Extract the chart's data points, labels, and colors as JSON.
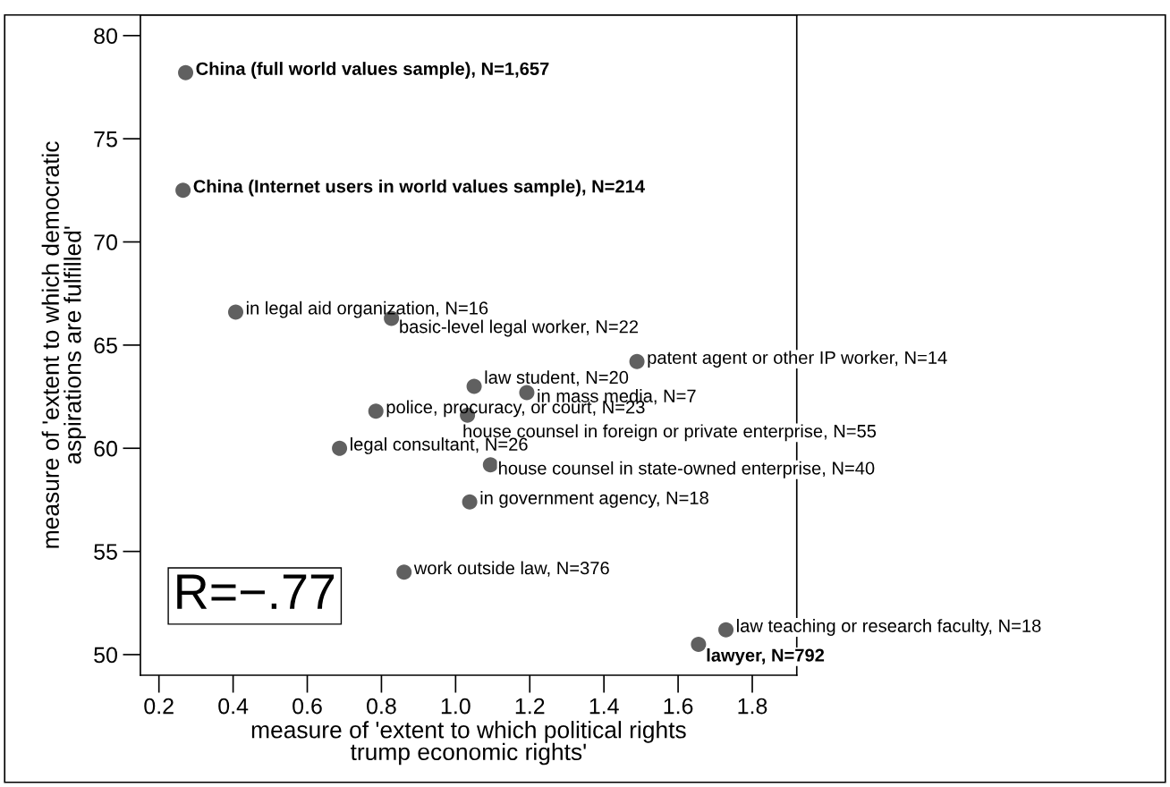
{
  "chart_data": {
    "type": "scatter",
    "xlabel": "measure of 'extent to which political rights\ntrump economic rights'",
    "ylabel": "measure of 'extent to which democratic\naspirations are fulfilled'",
    "x": [
      0.272,
      0.265,
      0.407,
      0.827,
      1.489,
      1.05,
      1.192,
      0.785,
      1.032,
      0.687,
      1.094,
      1.038,
      0.861,
      1.729,
      1.655
    ],
    "series": [
      {
        "color": "#606060",
        "values": [
          78.2,
          72.5,
          66.6,
          66.3,
          64.2,
          63.0,
          62.7,
          61.8,
          61.6,
          60.0,
          59.2,
          57.4,
          54.0,
          51.2,
          50.5
        ]
      }
    ],
    "marker": "circle",
    "xlim": [
      0.15,
      1.92
    ],
    "ylim": [
      49,
      81
    ],
    "xticks": [
      {
        "value": 0.2,
        "label": "0.2"
      },
      {
        "value": 0.4,
        "label": "0.4"
      },
      {
        "value": 0.6,
        "label": "0.6"
      },
      {
        "value": 0.8,
        "label": "0.8"
      },
      {
        "value": 1.0,
        "label": "1.0"
      },
      {
        "value": 1.2,
        "label": "1.2"
      },
      {
        "value": 1.4,
        "label": "1.4"
      },
      {
        "value": 1.6,
        "label": "1.6"
      },
      {
        "value": 1.8,
        "label": "1.8"
      }
    ],
    "yticks": [
      50,
      55,
      60,
      65,
      70,
      75,
      80
    ],
    "grid": false,
    "legend": false,
    "annotations": [
      {
        "text": "China (full world values sample), N=1,657",
        "x": 0.272,
        "y": 78.2
      },
      {
        "text": "China (Internet users in world values sample), N=214",
        "x": 0.265,
        "y": 72.5
      },
      {
        "text": "in legal aid organization, N=16",
        "x": 0.407,
        "y": 66.6
      },
      {
        "text": "basic-level legal worker, N=22",
        "x": 0.827,
        "y": 66.3
      },
      {
        "text": "patent agent or other IP worker, N=14",
        "x": 1.489,
        "y": 64.2
      },
      {
        "text": "law student, N=20",
        "x": 1.05,
        "y": 63.0
      },
      {
        "text": "in mass media, N=7",
        "x": 1.192,
        "y": 62.7
      },
      {
        "text": "police, procuracy, or court, N=23",
        "x": 0.785,
        "y": 61.8
      },
      {
        "text": "house counsel in foreign or private enterprise, N=55",
        "x": 1.032,
        "y": 61.6
      },
      {
        "text": "legal consultant, N=26",
        "x": 0.687,
        "y": 60.0
      },
      {
        "text": "house counsel in state-owned enterprise, N=40",
        "x": 1.094,
        "y": 59.2
      },
      {
        "text": "in government agency, N=18",
        "x": 1.038,
        "y": 57.4
      },
      {
        "text": "work outside law, N=376",
        "x": 0.861,
        "y": 54.0
      },
      {
        "text": "law teaching or research faculty, N=18",
        "x": 1.729,
        "y": 51.2
      },
      {
        "text": "lawyer, N=792",
        "x": 1.655,
        "y": 50.5
      },
      "R=−.77"
    ]
  }
}
